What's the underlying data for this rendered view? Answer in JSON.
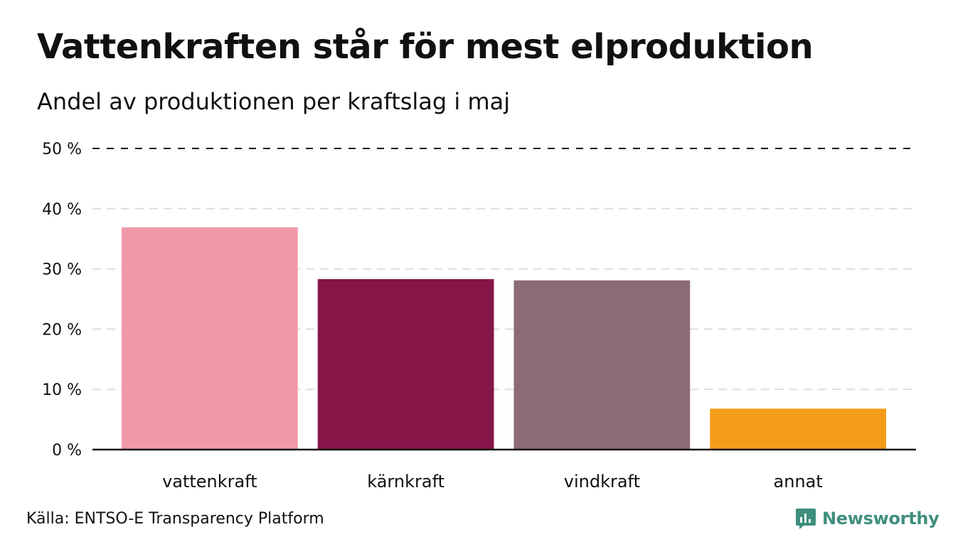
{
  "header": {
    "title": "Vattenkraften står för mest elproduktion",
    "subtitle": "Andel av produktionen per kraftslag i maj"
  },
  "footer": {
    "source": "Källa: ENTSO-E Transparency Platform",
    "logo_text": "Newsworthy",
    "logo_icon": "newsworthy-logo-icon"
  },
  "colors": {
    "logo": "#3f8f7d",
    "axis": "#111111",
    "grid": "#dddddd"
  },
  "chart_data": {
    "type": "bar",
    "categories": [
      "vattenkraft",
      "kärnkraft",
      "vindkraft",
      "annat"
    ],
    "values": [
      36.9,
      28.3,
      28.1,
      6.8
    ],
    "colors": [
      "#f09aa9",
      "#861548",
      "#8b6b77",
      "#f59d1a"
    ],
    "ylim": [
      0,
      50
    ],
    "yticks": [
      0,
      10,
      20,
      30,
      40,
      50
    ],
    "ytick_labels": [
      "0 %",
      "10 %",
      "20 %",
      "30 %",
      "40 %",
      "50 %"
    ],
    "grid": true,
    "top_reference_line": 50,
    "xlabel": "",
    "ylabel": ""
  }
}
